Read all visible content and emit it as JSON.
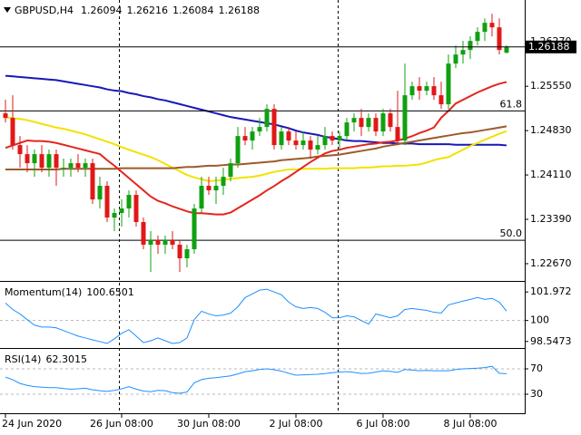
{
  "chart_data": [
    {
      "type": "candlestick",
      "title": "GBPUSD,H4",
      "categories": [
        "24 Jun 2020",
        null,
        null,
        null,
        null,
        null,
        null,
        null,
        null,
        null,
        null,
        null,
        null,
        null,
        null,
        null,
        "26 Jun 08:00",
        null,
        null,
        null,
        null,
        null,
        null,
        null,
        null,
        null,
        null,
        null,
        "30 Jun 08:00",
        null,
        null,
        null,
        null,
        null,
        null,
        null,
        null,
        null,
        null,
        null,
        "2 Jul 08:00",
        null,
        null,
        null,
        null,
        null,
        null,
        null,
        null,
        null,
        null,
        null,
        "6 Jul 08:00",
        null,
        null,
        null,
        null,
        null,
        null,
        null,
        null,
        null,
        null,
        null,
        "8 Jul 08:00",
        null,
        null,
        null,
        null,
        null
      ],
      "ohlc": [
        [
          1.2511,
          1.2533,
          1.24963,
          1.25036
        ],
        [
          1.25036,
          1.25404,
          1.24522,
          1.24595
        ],
        [
          1.24595,
          1.24742,
          1.24228,
          1.24448
        ],
        [
          1.24448,
          1.24595,
          1.24154,
          1.24301
        ],
        [
          1.24301,
          1.24522,
          1.24081,
          1.24448
        ],
        [
          1.24448,
          1.24595,
          1.24154,
          1.24228
        ],
        [
          1.24228,
          1.24522,
          1.24081,
          1.24448
        ],
        [
          1.24448,
          1.24522,
          1.23934,
          1.24228
        ],
        [
          1.24228,
          1.24375,
          1.24081,
          1.24228
        ],
        [
          1.24228,
          1.24375,
          1.24081,
          1.24301
        ],
        [
          1.24301,
          1.24448,
          1.24154,
          1.24228
        ],
        [
          1.24228,
          1.24375,
          1.24081,
          1.24301
        ],
        [
          1.24301,
          1.24375,
          1.2364,
          1.23713
        ],
        [
          1.23713,
          1.24081,
          1.23566,
          1.23934
        ],
        [
          1.23934,
          1.24007,
          1.23346,
          1.23419
        ],
        [
          1.23419,
          1.23566,
          1.23199,
          1.23493
        ],
        [
          1.23493,
          1.23713,
          1.23272,
          1.23566
        ],
        [
          1.23566,
          1.2386,
          1.23419,
          1.23787
        ],
        [
          1.23787,
          1.2386,
          1.23272,
          1.23346
        ],
        [
          1.23346,
          1.23419,
          1.22905,
          1.22978
        ],
        [
          1.22978,
          1.23199,
          1.22537,
          1.23052
        ],
        [
          1.23052,
          1.23125,
          1.22831,
          1.22978
        ],
        [
          1.22978,
          1.23125,
          1.22831,
          1.23052
        ],
        [
          1.23052,
          1.23199,
          1.22905,
          1.22978
        ],
        [
          1.22978,
          1.23052,
          1.22537,
          1.22758
        ],
        [
          1.22758,
          1.22978,
          1.22611,
          1.22905
        ],
        [
          1.22905,
          1.2364,
          1.22831,
          1.23566
        ],
        [
          1.23566,
          1.24081,
          1.23493,
          1.23934
        ],
        [
          1.23934,
          1.24081,
          1.23787,
          1.2386
        ],
        [
          1.2386,
          1.24081,
          1.2364,
          1.23934
        ],
        [
          1.23934,
          1.24228,
          1.23787,
          1.24081
        ],
        [
          1.24081,
          1.24375,
          1.24007,
          1.24301
        ],
        [
          1.24301,
          1.24889,
          1.24228,
          1.24742
        ],
        [
          1.24742,
          1.24889,
          1.24595,
          1.24669
        ],
        [
          1.24669,
          1.24889,
          1.24522,
          1.24816
        ],
        [
          1.24816,
          1.25036,
          1.24742,
          1.24889
        ],
        [
          1.24889,
          1.25257,
          1.24816,
          1.25183
        ],
        [
          1.25183,
          1.25257,
          1.24522,
          1.24595
        ],
        [
          1.24595,
          1.24889,
          1.24522,
          1.24816
        ],
        [
          1.24816,
          1.24889,
          1.24595,
          1.24669
        ],
        [
          1.24669,
          1.24816,
          1.24522,
          1.24595
        ],
        [
          1.24595,
          1.24816,
          1.24522,
          1.24669
        ],
        [
          1.24669,
          1.24742,
          1.24375,
          1.24522
        ],
        [
          1.24522,
          1.24742,
          1.24448,
          1.24595
        ],
        [
          1.24595,
          1.24889,
          1.24522,
          1.24742
        ],
        [
          1.24742,
          1.24816,
          1.24595,
          1.24669
        ],
        [
          1.24669,
          1.24816,
          1.24522,
          1.24742
        ],
        [
          1.24742,
          1.25036,
          1.24669,
          1.24963
        ],
        [
          1.24963,
          1.2511,
          1.24816,
          1.25036
        ],
        [
          1.25036,
          1.25183,
          1.24742,
          1.24889
        ],
        [
          1.24889,
          1.2511,
          1.24816,
          1.25036
        ],
        [
          1.25036,
          1.2511,
          1.24742,
          1.24816
        ],
        [
          1.24816,
          1.25183,
          1.24742,
          1.2511
        ],
        [
          1.2511,
          1.25183,
          1.24816,
          1.24889
        ],
        [
          1.24889,
          1.25477,
          1.24595,
          1.24669
        ],
        [
          1.24669,
          1.25918,
          1.24595,
          1.25404
        ],
        [
          1.25404,
          1.25624,
          1.2533,
          1.25551
        ],
        [
          1.25551,
          1.25698,
          1.2533,
          1.25477
        ],
        [
          1.25477,
          1.25624,
          1.25404,
          1.25551
        ],
        [
          1.25551,
          1.25698,
          1.2533,
          1.25404
        ],
        [
          1.25404,
          1.25624,
          1.25183,
          1.25257
        ],
        [
          1.25257,
          1.26065,
          1.25183,
          1.25918
        ],
        [
          1.25918,
          1.26212,
          1.25845,
          1.26065
        ],
        [
          1.26065,
          1.26286,
          1.25918,
          1.26139
        ],
        [
          1.26139,
          1.26359,
          1.25992,
          1.26286
        ],
        [
          1.26286,
          1.26506,
          1.26212,
          1.26433
        ],
        [
          1.26433,
          1.26653,
          1.26286,
          1.2658
        ],
        [
          1.2658,
          1.26727,
          1.26359,
          1.26506
        ],
        [
          1.26506,
          1.26653,
          1.26065,
          1.26139
        ],
        [
          1.26094,
          1.26216,
          1.26084,
          1.26188
        ]
      ],
      "up_color": "#10a010",
      "down_color": "#e01818",
      "series": [
        {
          "color": "#1818b8",
          "values": [
            1.2572,
            1.2571,
            1.257,
            1.2569,
            1.2568,
            1.2567,
            1.2566,
            1.2565,
            1.2563,
            1.2561,
            1.2559,
            1.2557,
            1.2555,
            1.2553,
            1.255,
            1.2548,
            1.2547,
            1.2544,
            1.2542,
            1.2539,
            1.2537,
            1.2534,
            1.2532,
            1.2529,
            1.2526,
            1.2523,
            1.252,
            1.2517,
            1.2514,
            1.2511,
            1.2508,
            1.2505,
            1.2503,
            1.2501,
            1.2499,
            1.2497,
            1.2495,
            1.2493,
            1.249,
            1.2487,
            1.2483,
            1.248,
            1.2478,
            1.2476,
            1.2473,
            1.2471,
            1.2469,
            1.2467,
            1.2466,
            1.2466,
            1.2465,
            1.2464,
            1.2463,
            1.2463,
            1.2462,
            1.2462,
            1.2462,
            1.2461,
            1.2461,
            1.2461,
            1.2461,
            1.2461,
            1.246,
            1.246,
            1.246,
            1.246,
            1.246,
            1.246,
            1.246,
            1.2459
          ]
        },
        {
          "color": "#f2e200",
          "values": [
            1.2505,
            1.2503,
            1.2502,
            1.25,
            1.2497,
            1.2494,
            1.2491,
            1.2488,
            1.2486,
            1.2483,
            1.248,
            1.2477,
            1.2473,
            1.2469,
            1.2465,
            1.2461,
            1.2456,
            1.2452,
            1.2448,
            1.2444,
            1.244,
            1.2435,
            1.2429,
            1.2423,
            1.2417,
            1.2411,
            1.2407,
            1.2404,
            1.2401,
            1.2402,
            1.2403,
            1.2405,
            1.2406,
            1.2407,
            1.2408,
            1.241,
            1.2413,
            1.2416,
            1.2418,
            1.242,
            1.242,
            1.2421,
            1.2421,
            1.2421,
            1.2421,
            1.2422,
            1.2422,
            1.2422,
            1.2422,
            1.2423,
            1.2423,
            1.2424,
            1.2425,
            1.2425,
            1.2426,
            1.2426,
            1.2427,
            1.2428,
            1.2431,
            1.2435,
            1.2438,
            1.244,
            1.2446,
            1.2452,
            1.2458,
            1.2463,
            1.2468,
            1.2473,
            1.2478,
            1.2482
          ]
        },
        {
          "color": "#9c5a2a",
          "values": [
            1.242,
            1.242,
            1.242,
            1.242,
            1.242,
            1.242,
            1.242,
            1.242,
            1.2421,
            1.2421,
            1.2421,
            1.2421,
            1.2421,
            1.2421,
            1.2421,
            1.2421,
            1.2422,
            1.2422,
            1.2422,
            1.2422,
            1.2422,
            1.2422,
            1.2422,
            1.2422,
            1.2423,
            1.2424,
            1.2424,
            1.2425,
            1.2426,
            1.2426,
            1.2427,
            1.2428,
            1.2428,
            1.2429,
            1.243,
            1.2431,
            1.2432,
            1.2433,
            1.2435,
            1.2436,
            1.2437,
            1.2438,
            1.2439,
            1.2441,
            1.2442,
            1.2443,
            1.2444,
            1.2446,
            1.2448,
            1.245,
            1.2452,
            1.2454,
            1.2457,
            1.2459,
            1.2461,
            1.2463,
            1.2465,
            1.2467,
            1.2469,
            1.2471,
            1.2473,
            1.2475,
            1.2477,
            1.2479,
            1.248,
            1.2482,
            1.2484,
            1.2486,
            1.2488,
            1.249
          ]
        },
        {
          "color": "#e4251f",
          "values": [
            1.2455,
            1.2459,
            1.2463,
            1.2467,
            1.2466,
            1.2466,
            1.2465,
            1.2463,
            1.246,
            1.2457,
            1.2454,
            1.2451,
            1.2448,
            1.2445,
            1.2435,
            1.2426,
            1.2416,
            1.2406,
            1.2396,
            1.2386,
            1.2376,
            1.2369,
            1.2365,
            1.236,
            1.2356,
            1.2352,
            1.2349,
            1.2349,
            1.2348,
            1.2347,
            1.2347,
            1.235,
            1.2357,
            1.2364,
            1.2371,
            1.2378,
            1.2386,
            1.2393,
            1.2401,
            1.2408,
            1.2416,
            1.2424,
            1.2432,
            1.2439,
            1.2446,
            1.245,
            1.2452,
            1.2455,
            1.2457,
            1.2459,
            1.2461,
            1.2462,
            1.2464,
            1.2465,
            1.2467,
            1.247,
            1.2474,
            1.2479,
            1.2483,
            1.2488,
            1.2504,
            1.2515,
            1.2527,
            1.2533,
            1.2539,
            1.2545,
            1.255,
            1.2555,
            1.2559,
            1.2562
          ]
        }
      ],
      "fib_levels": [
        {
          "label": "61.8",
          "price": 1.2515
        },
        {
          "label": "50.0",
          "price": 1.2305
        }
      ],
      "ylim": [
        1.2239,
        1.2695
      ],
      "yticks": [
        {
          "value": 1.2267,
          "label": "1.22670"
        },
        {
          "value": 1.2339,
          "label": "1.23390"
        },
        {
          "value": 1.2411,
          "label": "1.24110"
        },
        {
          "value": 1.2483,
          "label": "1.24830"
        },
        {
          "value": 1.2555,
          "label": "1.25550"
        },
        {
          "value": 1.2627,
          "label": "1.26270"
        }
      ]
    },
    {
      "type": "line",
      "title": "Momentum(14)",
      "color": "#1e90ff",
      "values": [
        101.21,
        100.76,
        100.45,
        100.06,
        99.68,
        99.55,
        99.55,
        99.49,
        99.3,
        99.11,
        98.92,
        98.79,
        98.66,
        98.54,
        98.41,
        98.73,
        99.11,
        99.36,
        98.92,
        98.47,
        98.6,
        98.79,
        98.6,
        98.41,
        98.47,
        98.79,
        100.06,
        100.64,
        100.45,
        100.32,
        100.38,
        100.51,
        100.95,
        101.59,
        101.84,
        102.1,
        102.16,
        101.97,
        101.78,
        101.27,
        100.95,
        100.83,
        100.89,
        100.83,
        100.57,
        100.19,
        100.19,
        100.32,
        100.25,
        100,
        99.75,
        100.45,
        100.32,
        100.19,
        100.32,
        100.76,
        100.83,
        100.76,
        100.7,
        100.57,
        100.51,
        101.08,
        101.21,
        101.34,
        101.46,
        101.59,
        101.46,
        101.53,
        101.27,
        100.6501
      ],
      "levels": [
        100
      ],
      "ylim": [
        98.16,
        102.61
      ],
      "yticks": [
        101.972,
        100,
        98.5473
      ]
    },
    {
      "type": "line",
      "title": "RSI(14)",
      "color": "#1e90ff",
      "values": [
        57,
        53,
        47,
        44,
        42,
        41,
        40.4,
        40.4,
        39,
        37.8,
        38.5,
        39.5,
        37,
        35.5,
        34.5,
        36,
        38.5,
        42,
        38,
        35,
        34,
        36,
        35.5,
        32.5,
        31.5,
        33.5,
        48,
        53,
        55.2,
        56,
        57.5,
        59,
        62,
        65.5,
        67,
        69,
        70,
        68.5,
        66.5,
        63,
        60,
        60.5,
        61,
        61.5,
        62.5,
        64,
        65,
        65.6,
        64.5,
        62.6,
        63,
        65,
        67,
        66,
        64.5,
        69,
        68,
        67,
        67.5,
        67,
        67,
        67,
        69,
        70,
        70.5,
        71,
        72,
        74,
        63,
        62.3015
      ],
      "levels": [
        70,
        30
      ],
      "ylim": [
        0,
        100
      ],
      "yticks": [
        70,
        30
      ]
    }
  ]
}
